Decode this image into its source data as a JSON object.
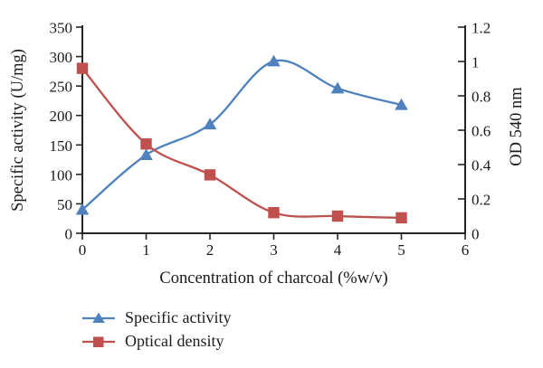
{
  "chart_data": {
    "type": "line",
    "title": "",
    "x": [
      0,
      1,
      2,
      3,
      4,
      5
    ],
    "series": [
      {
        "name": "Specific activity",
        "axis": "left",
        "marker": "triangle",
        "color": "#4f81bd",
        "values": [
          40,
          133,
          185,
          292,
          246,
          218
        ]
      },
      {
        "name": "Optical density",
        "axis": "right",
        "marker": "square",
        "color": "#c0504d",
        "values": [
          0.96,
          0.52,
          0.34,
          0.12,
          0.1,
          0.09
        ]
      }
    ],
    "xlabel": "Concentration of charcoal (%w/v)",
    "ylabel_left": "Specific activity (U/mg)",
    "ylabel_right": "OD 540 nm",
    "x_tick_labels": [
      "0",
      "1",
      "2",
      "3",
      "4",
      "5",
      "6"
    ],
    "y_left_tick_labels": [
      "0",
      "50",
      "100",
      "150",
      "200",
      "250",
      "300",
      "350"
    ],
    "y_right_tick_labels": [
      "0",
      "0.2",
      "0.4",
      "0.6",
      "0.8",
      "1",
      "1.2"
    ],
    "xlim": [
      0,
      6
    ],
    "ylim_left": [
      0,
      350
    ],
    "ylim_right": [
      0,
      1.2
    ],
    "grid": false,
    "legend_position": "bottom-left",
    "axis_color": "#262626",
    "text_color": "#1a1a1a"
  },
  "legend": {
    "items": [
      {
        "label": "Specific activity"
      },
      {
        "label": "Optical density"
      }
    ]
  }
}
